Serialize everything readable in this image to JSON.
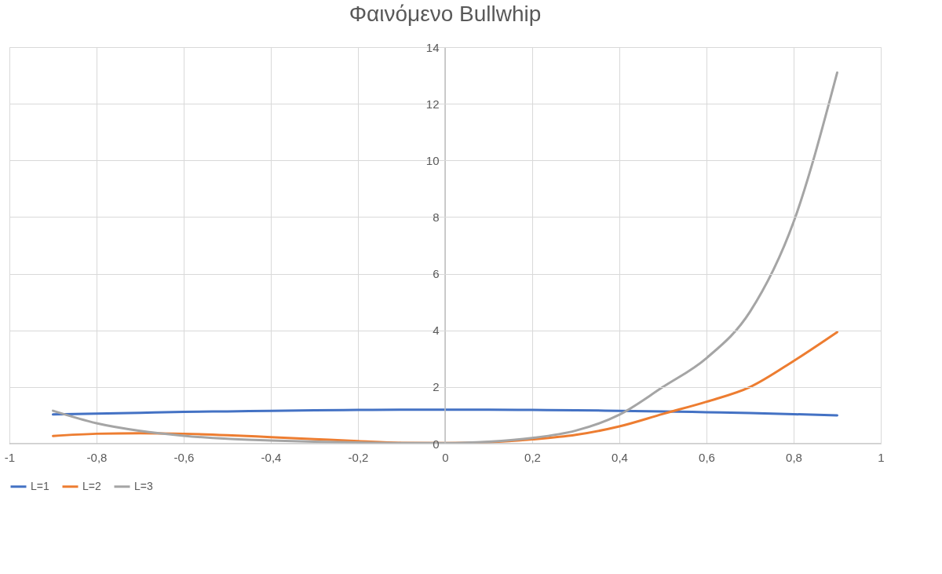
{
  "chart_data": {
    "type": "line",
    "title": "Φαινόμενο Bullwhip",
    "x": [
      -0.9,
      -0.8,
      -0.7,
      -0.6,
      -0.5,
      -0.4,
      -0.3,
      -0.2,
      -0.1,
      0,
      0.1,
      0.2,
      0.3,
      0.4,
      0.5,
      0.6,
      0.7,
      0.8,
      0.9
    ],
    "series": [
      {
        "name": "L=1",
        "color": "#4472c4",
        "values": [
          1.03,
          1.06,
          1.09,
          1.12,
          1.14,
          1.16,
          1.18,
          1.19,
          1.2,
          1.2,
          1.2,
          1.19,
          1.18,
          1.16,
          1.14,
          1.11,
          1.08,
          1.04,
          1.0
        ]
      },
      {
        "name": "L=2",
        "color": "#ed7d31",
        "values": [
          0.27,
          0.35,
          0.37,
          0.35,
          0.3,
          0.23,
          0.16,
          0.09,
          0.03,
          0.02,
          0.05,
          0.15,
          0.31,
          0.61,
          1.05,
          1.48,
          2.0,
          2.92,
          3.94
        ]
      },
      {
        "name": "L=3",
        "color": "#a5a5a5",
        "values": [
          1.16,
          0.72,
          0.45,
          0.28,
          0.17,
          0.11,
          0.07,
          0.04,
          0.02,
          0.02,
          0.07,
          0.2,
          0.46,
          1.02,
          2.0,
          3.02,
          4.66,
          7.83,
          13.1
        ]
      }
    ],
    "xlim": [
      -1,
      1
    ],
    "xticks": [
      -1,
      {
        "value": -0.8,
        "label": "-0,8"
      },
      {
        "value": -0.6,
        "label": "-0,6"
      },
      {
        "value": -0.4,
        "label": "-0,4"
      },
      {
        "value": -0.2,
        "label": "-0,2"
      },
      0,
      {
        "value": 0.2,
        "label": "0,2"
      },
      {
        "value": 0.4,
        "label": "0,4"
      },
      {
        "value": 0.6,
        "label": "0,6"
      },
      {
        "value": 0.8,
        "label": "0,8"
      },
      1
    ],
    "ylim": [
      0,
      14
    ],
    "yticks": [
      0,
      2,
      4,
      6,
      8,
      10,
      12,
      14
    ],
    "grid": true,
    "legend": "bottom",
    "marker": "none",
    "line_style": "solid"
  }
}
